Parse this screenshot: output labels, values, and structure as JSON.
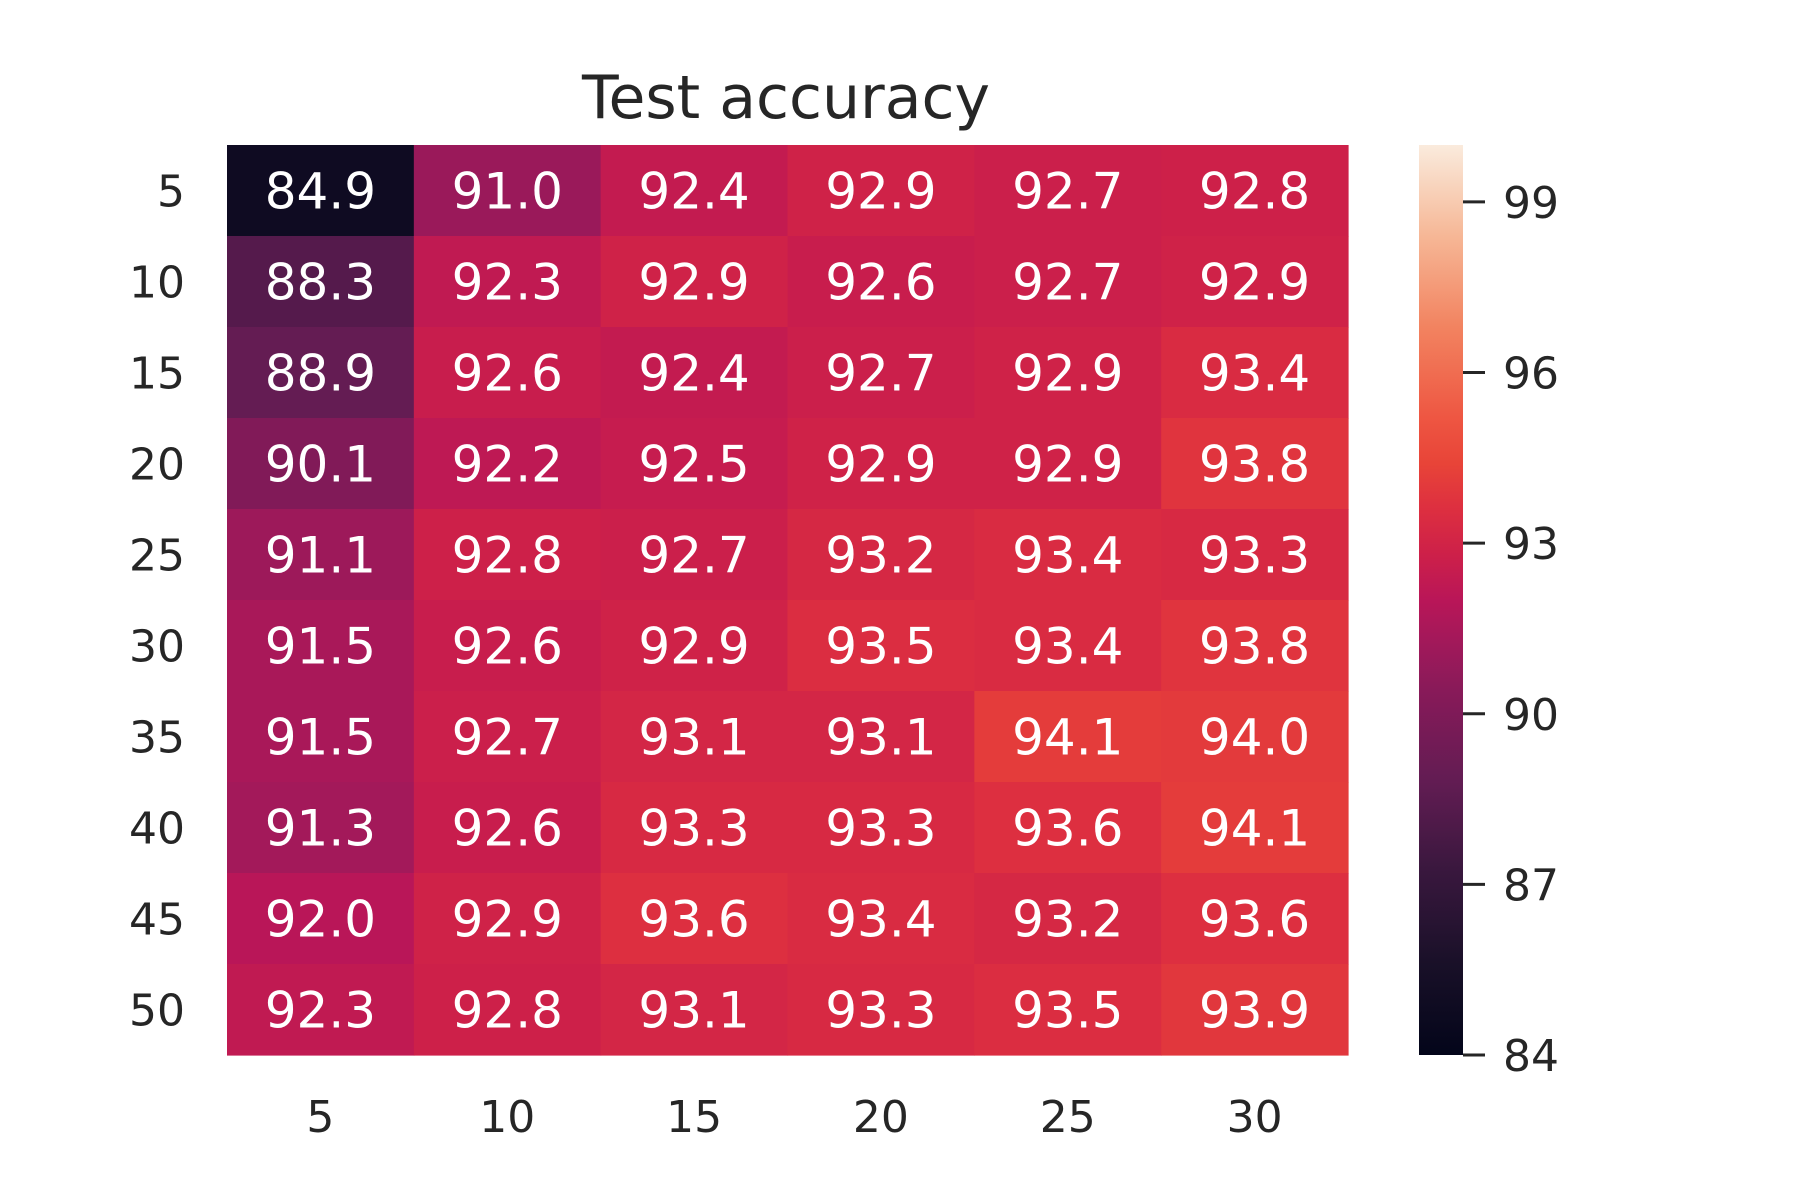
{
  "chart_data": {
    "type": "heatmap",
    "title": "Test accuracy",
    "xlabel": "",
    "ylabel": "",
    "x_categories": [
      "5",
      "10",
      "15",
      "20",
      "25",
      "30"
    ],
    "y_categories": [
      "5",
      "10",
      "15",
      "20",
      "25",
      "30",
      "35",
      "40",
      "45",
      "50"
    ],
    "values": [
      [
        84.9,
        91.0,
        92.4,
        92.9,
        92.7,
        92.8
      ],
      [
        88.3,
        92.3,
        92.9,
        92.6,
        92.7,
        92.9
      ],
      [
        88.9,
        92.6,
        92.4,
        92.7,
        92.9,
        93.4
      ],
      [
        90.1,
        92.2,
        92.5,
        92.9,
        92.9,
        93.8
      ],
      [
        91.1,
        92.8,
        92.7,
        93.2,
        93.4,
        93.3
      ],
      [
        91.5,
        92.6,
        92.9,
        93.5,
        93.4,
        93.8
      ],
      [
        91.5,
        92.7,
        93.1,
        93.1,
        94.1,
        94.0
      ],
      [
        91.3,
        92.6,
        93.3,
        93.3,
        93.6,
        94.1
      ],
      [
        92.0,
        92.9,
        93.6,
        93.4,
        93.2,
        93.6
      ],
      [
        92.3,
        92.8,
        93.1,
        93.3,
        93.5,
        93.9
      ]
    ],
    "value_format": "0.1f",
    "colorbar": {
      "vmin": 84,
      "vmax": 100,
      "ticks": [
        84,
        87,
        90,
        93,
        96,
        99
      ],
      "colormap": "rocket"
    },
    "legend_placement": "right",
    "grid": false
  }
}
